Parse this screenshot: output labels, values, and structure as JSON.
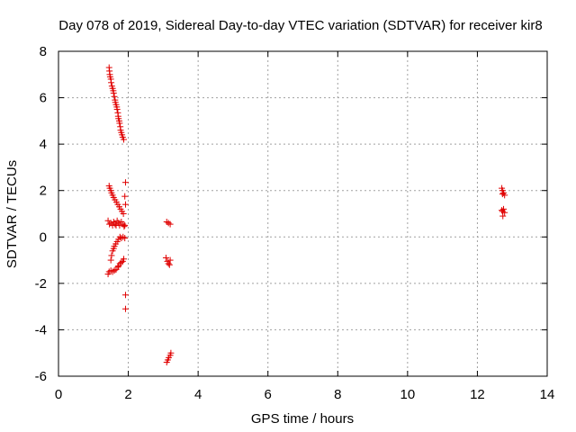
{
  "chart_data": {
    "type": "scatter",
    "title": "Day 078 of 2019, Sidereal Day-to-day VTEC variation (SDTVAR) for receiver kir8",
    "xlabel": "GPS time / hours",
    "ylabel": "SDTVAR / TECUs",
    "xlim": [
      0,
      14
    ],
    "ylim": [
      -6,
      8
    ],
    "xticks": [
      "0",
      "2",
      "4",
      "6",
      "8",
      "10",
      "12",
      "14"
    ],
    "yticks": [
      "-6",
      "-4",
      "-2",
      "0",
      "2",
      "4",
      "6",
      "8"
    ],
    "grid": true,
    "marker": "+",
    "marker_color": "#e00000",
    "series": [
      {
        "name": "SDTVAR",
        "points": [
          [
            1.45,
            7.3
          ],
          [
            1.46,
            7.15
          ],
          [
            1.47,
            7.0
          ],
          [
            1.48,
            6.9
          ],
          [
            1.5,
            6.8
          ],
          [
            1.51,
            6.65
          ],
          [
            1.53,
            6.5
          ],
          [
            1.55,
            6.4
          ],
          [
            1.57,
            6.3
          ],
          [
            1.58,
            6.2
          ],
          [
            1.6,
            6.05
          ],
          [
            1.62,
            5.9
          ],
          [
            1.63,
            5.8
          ],
          [
            1.65,
            5.7
          ],
          [
            1.67,
            5.6
          ],
          [
            1.68,
            5.5
          ],
          [
            1.7,
            5.35
          ],
          [
            1.71,
            5.2
          ],
          [
            1.72,
            5.1
          ],
          [
            1.74,
            5.0
          ],
          [
            1.75,
            4.9
          ],
          [
            1.77,
            4.75
          ],
          [
            1.78,
            4.6
          ],
          [
            1.8,
            4.5
          ],
          [
            1.82,
            4.4
          ],
          [
            1.84,
            4.3
          ],
          [
            1.87,
            4.2
          ],
          [
            1.45,
            2.2
          ],
          [
            1.47,
            2.1
          ],
          [
            1.5,
            2.0
          ],
          [
            1.52,
            1.9
          ],
          [
            1.55,
            1.8
          ],
          [
            1.58,
            1.7
          ],
          [
            1.62,
            1.6
          ],
          [
            1.66,
            1.5
          ],
          [
            1.7,
            1.4
          ],
          [
            1.74,
            1.3
          ],
          [
            1.78,
            1.2
          ],
          [
            1.82,
            1.1
          ],
          [
            1.86,
            1.0
          ],
          [
            1.92,
            2.35
          ],
          [
            1.9,
            1.75
          ],
          [
            1.92,
            1.4
          ],
          [
            1.42,
            0.7
          ],
          [
            1.46,
            0.55
          ],
          [
            1.5,
            0.6
          ],
          [
            1.55,
            0.5
          ],
          [
            1.58,
            0.65
          ],
          [
            1.62,
            0.55
          ],
          [
            1.65,
            0.5
          ],
          [
            1.68,
            0.7
          ],
          [
            1.72,
            0.6
          ],
          [
            1.75,
            0.5
          ],
          [
            1.8,
            0.65
          ],
          [
            1.85,
            0.55
          ],
          [
            1.88,
            0.45
          ],
          [
            1.9,
            0.5
          ],
          [
            1.5,
            -1.0
          ],
          [
            1.52,
            -0.8
          ],
          [
            1.55,
            -0.6
          ],
          [
            1.58,
            -0.5
          ],
          [
            1.6,
            -0.4
          ],
          [
            1.64,
            -0.3
          ],
          [
            1.68,
            -0.2
          ],
          [
            1.72,
            -0.1
          ],
          [
            1.76,
            0.0
          ],
          [
            1.8,
            -0.05
          ],
          [
            1.85,
            0.0
          ],
          [
            1.9,
            -0.05
          ],
          [
            1.42,
            -1.6
          ],
          [
            1.45,
            -1.5
          ],
          [
            1.5,
            -1.45
          ],
          [
            1.55,
            -1.5
          ],
          [
            1.6,
            -1.45
          ],
          [
            1.65,
            -1.4
          ],
          [
            1.7,
            -1.3
          ],
          [
            1.72,
            -1.25
          ],
          [
            1.76,
            -1.15
          ],
          [
            1.8,
            -1.1
          ],
          [
            1.84,
            -1.05
          ],
          [
            1.87,
            -0.95
          ],
          [
            1.92,
            -2.5
          ],
          [
            1.92,
            -3.1
          ],
          [
            3.1,
            0.65
          ],
          [
            3.15,
            0.6
          ],
          [
            3.2,
            0.55
          ],
          [
            3.08,
            -0.9
          ],
          [
            3.12,
            -1.05
          ],
          [
            3.15,
            -1.15
          ],
          [
            3.2,
            -1.0
          ],
          [
            3.18,
            -1.2
          ],
          [
            3.1,
            -5.4
          ],
          [
            3.13,
            -5.3
          ],
          [
            3.16,
            -5.2
          ],
          [
            3.2,
            -5.1
          ],
          [
            3.22,
            -5.0
          ],
          [
            12.7,
            2.1
          ],
          [
            12.72,
            2.0
          ],
          [
            12.75,
            1.9
          ],
          [
            12.78,
            1.8
          ],
          [
            12.72,
            1.85
          ],
          [
            12.7,
            1.15
          ],
          [
            12.72,
            1.1
          ],
          [
            12.75,
            1.2
          ],
          [
            12.78,
            1.05
          ],
          [
            12.73,
            0.9
          ]
        ]
      }
    ]
  }
}
